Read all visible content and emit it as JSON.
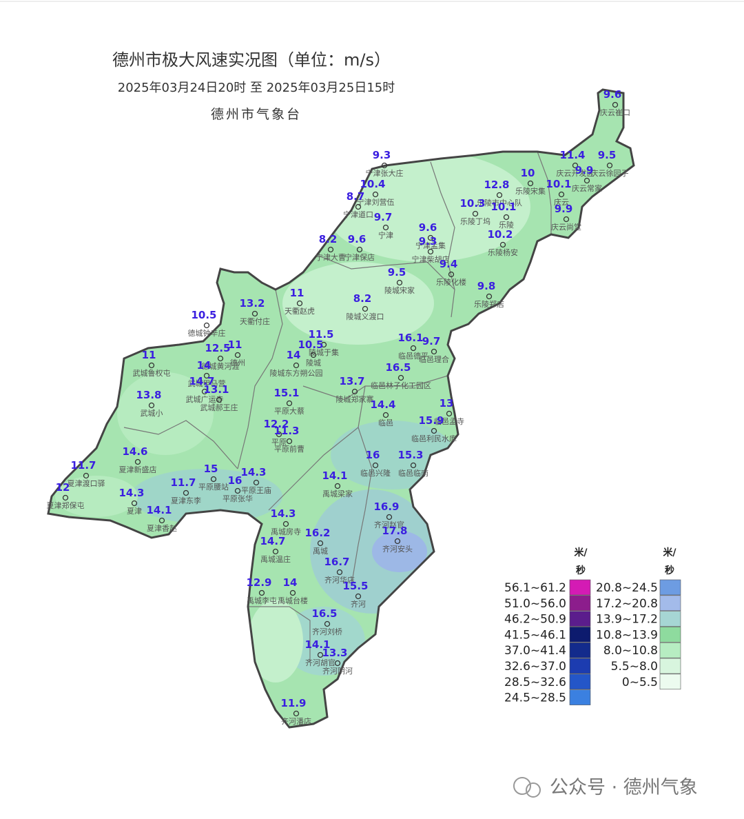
{
  "header": {
    "title": "德州市极大风速实况图（单位：m/s）",
    "time_range": "2025年03月24日20时  至  2025年03月25日15时",
    "issuer": "德州市气象台"
  },
  "stations": [
    {
      "name": "庆云崔口",
      "value": 9.6
    },
    {
      "name": "宁津张大庄",
      "value": 9.3
    },
    {
      "name": "庆云开发区",
      "value": 11.4
    },
    {
      "name": "庆云徐园子",
      "value": 9.5
    },
    {
      "name": "庆云常家",
      "value": 9.9
    },
    {
      "name": "乐陵宋集",
      "value": 10
    },
    {
      "name": "庆云",
      "value": 10.1
    },
    {
      "name": "乐陵市中心队",
      "value": 12.8
    },
    {
      "name": "宁津刘营伍",
      "value": 10.4
    },
    {
      "name": "宁津道口",
      "value": 8.7
    },
    {
      "name": "乐陵丁坞",
      "value": 10.3
    },
    {
      "name": "乐陵",
      "value": 10.1
    },
    {
      "name": "庆云尚堂",
      "value": 9.9
    },
    {
      "name": "宁津",
      "value": 9.7
    },
    {
      "name": "乐陵杨安",
      "value": 10.2
    },
    {
      "name": "宁津孟集",
      "value": 9.6
    },
    {
      "name": "宁津大曹",
      "value": 8.2
    },
    {
      "name": "宁津保店",
      "value": 9.6
    },
    {
      "name": "宁津柴胡店",
      "value": 9.3
    },
    {
      "name": "乐陵化楼",
      "value": 9.4
    },
    {
      "name": "陵城宋家",
      "value": 9.5
    },
    {
      "name": "乐陵郑店",
      "value": 9.8
    },
    {
      "name": "陵城义渡口",
      "value": 8.2
    },
    {
      "name": "天衢赵虎",
      "value": 11
    },
    {
      "name": "天衢付庄",
      "value": 13.2
    },
    {
      "name": "德城钟辛庄",
      "value": 10.5
    },
    {
      "name": "陵城于集",
      "value": 11.5
    },
    {
      "name": "临邑德平",
      "value": 16.1
    },
    {
      "name": "临邑理合",
      "value": 9.7
    },
    {
      "name": "德州",
      "value": 11
    },
    {
      "name": "德城黄河涯",
      "value": 12.5
    },
    {
      "name": "武城鲁权屯",
      "value": 11
    },
    {
      "name": "陵城东方朔公园",
      "value": 14
    },
    {
      "name": "陵城",
      "value": 10.5
    },
    {
      "name": "武城甲马营",
      "value": 14
    },
    {
      "name": "临邑林子化工园区",
      "value": 16.5
    },
    {
      "name": "陵城郑家寨",
      "value": 13.7
    },
    {
      "name": "武城广运寺",
      "value": 14.7
    },
    {
      "name": "武城小",
      "value": 13.8
    },
    {
      "name": "武城郝王庄",
      "value": 13.1
    },
    {
      "name": "平原大蔡",
      "value": 15.1
    },
    {
      "name": "临邑",
      "value": 14.4
    },
    {
      "name": "临邑孟寺",
      "value": 13
    },
    {
      "name": "平原",
      "value": 12.2
    },
    {
      "name": "平原前曹",
      "value": 11.3
    },
    {
      "name": "临邑利民水库",
      "value": 15.9
    },
    {
      "name": "夏津新盛店",
      "value": 14.6
    },
    {
      "name": "临邑兴隆",
      "value": 16
    },
    {
      "name": "临邑临南",
      "value": 15.3
    },
    {
      "name": "夏津渡口驿",
      "value": 11.7
    },
    {
      "name": "平原腰站",
      "value": 15
    },
    {
      "name": "平原王庙",
      "value": 14.3
    },
    {
      "name": "平原张华",
      "value": 16
    },
    {
      "name": "禹城梁家",
      "value": 14.1
    },
    {
      "name": "夏津东李",
      "value": 11.7
    },
    {
      "name": "夏津郑保屯",
      "value": 12
    },
    {
      "name": "夏津",
      "value": 14.3
    },
    {
      "name": "夏津香赵",
      "value": 14.1
    },
    {
      "name": "禹城房寺",
      "value": 14.3
    },
    {
      "name": "齐河赵官",
      "value": 16.9
    },
    {
      "name": "齐河安头",
      "value": 17.8
    },
    {
      "name": "禹城",
      "value": 16.2
    },
    {
      "name": "禹城温庄",
      "value": 14.7
    },
    {
      "name": "齐河华店",
      "value": 16.7
    },
    {
      "name": "禹城李屯",
      "value": 12.9
    },
    {
      "name": "禹城台楼",
      "value": 14
    },
    {
      "name": "齐河",
      "value": 15.5
    },
    {
      "name": "齐河刘桥",
      "value": 16.5
    },
    {
      "name": "齐河胡官",
      "value": 14.1
    },
    {
      "name": "齐河阴河",
      "value": 13.3
    },
    {
      "name": "齐河潘店",
      "value": 11.9
    }
  ],
  "legend": {
    "columns": [
      {
        "unit": [
          "米/",
          "秒"
        ],
        "items": [
          {
            "label": "56.1~61.2",
            "color": "#d41bb4"
          },
          {
            "label": "51.0~56.0",
            "color": "#8c1d8c"
          },
          {
            "label": "46.2~50.9",
            "color": "#5b1d8c"
          },
          {
            "label": "41.5~46.1",
            "color": "#0d1b6e"
          },
          {
            "label": "37.0~41.4",
            "color": "#132b8c"
          },
          {
            "label": "32.6~37.0",
            "color": "#1c3cb0"
          },
          {
            "label": "28.5~32.6",
            "color": "#2456c8"
          },
          {
            "label": "24.5~28.5",
            "color": "#3b80e0"
          }
        ]
      },
      {
        "unit": [
          "米/",
          "秒"
        ],
        "items": [
          {
            "label": "20.8~24.5",
            "color": "#6d9ce2"
          },
          {
            "label": "17.2~20.8",
            "color": "#a3bbea"
          },
          {
            "label": "13.9~17.2",
            "color": "#a6d6d4"
          },
          {
            "label": "10.8~13.9",
            "color": "#8edb9e"
          },
          {
            "label": "8.0~10.8",
            "color": "#b7edc2"
          },
          {
            "label": "5.5~8.0",
            "color": "#d8f5de"
          },
          {
            "label": "0~5.5",
            "color": "#ecfbef"
          }
        ]
      }
    ]
  },
  "watermark": "公众号 · 德州气象"
}
